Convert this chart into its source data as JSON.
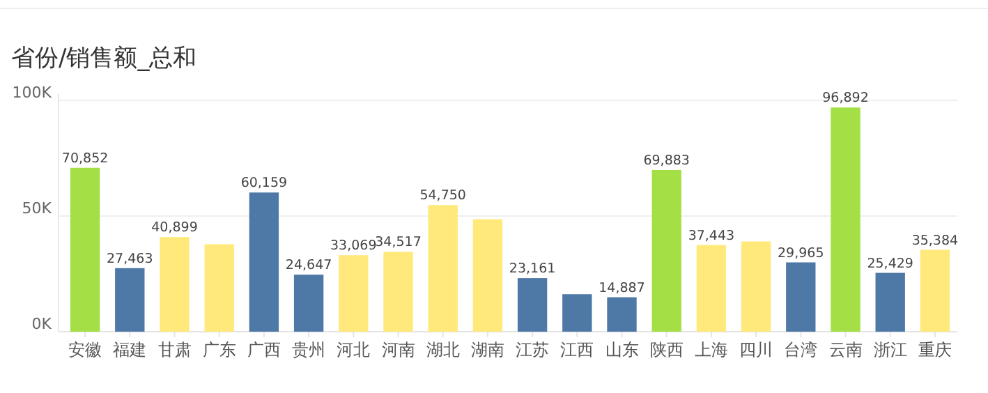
{
  "chart_data": {
    "type": "bar",
    "title": "省份/销售额_总和",
    "categories": [
      "安徽",
      "福建",
      "甘肃",
      "广东",
      "广西",
      "贵州",
      "河北",
      "河南",
      "湖北",
      "湖南",
      "江苏",
      "江西",
      "山东",
      "陕西",
      "上海",
      "四川",
      "台湾",
      "云南",
      "浙江",
      "重庆"
    ],
    "values": [
      70852,
      27463,
      40899,
      37800,
      60159,
      24647,
      33069,
      34517,
      54750,
      48600,
      23161,
      16200,
      14887,
      69883,
      37443,
      39000,
      29965,
      96892,
      25429,
      35384
    ],
    "value_labels": [
      "70,852",
      "27,463",
      "40,899",
      null,
      "60,159",
      "24,647",
      "33,069",
      "34,517",
      "54,750",
      null,
      "23,161",
      null,
      "14,887",
      "69,883",
      "37,443",
      null,
      "29,965",
      "96,892",
      "25,429",
      "35,384"
    ],
    "colors": [
      "#a4e045",
      "#4e79a7",
      "#ffe97a",
      "#ffe97a",
      "#4e79a7",
      "#4e79a7",
      "#ffe97a",
      "#ffe97a",
      "#ffe97a",
      "#ffe97a",
      "#4e79a7",
      "#4e79a7",
      "#4e79a7",
      "#a4e045",
      "#ffe97a",
      "#ffe97a",
      "#4e79a7",
      "#a4e045",
      "#4e79a7",
      "#ffe97a"
    ],
    "ylim": [
      0,
      100000
    ],
    "yticks": [
      {
        "value": 0,
        "label": "0K"
      },
      {
        "value": 50000,
        "label": "50K"
      },
      {
        "value": 100000,
        "label": "100K"
      }
    ],
    "grid": "y"
  }
}
